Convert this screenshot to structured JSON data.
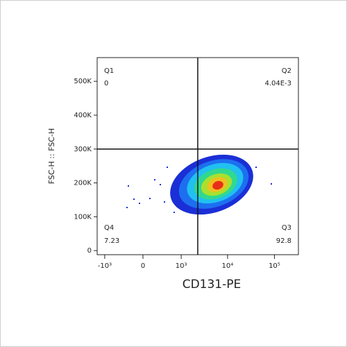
{
  "chart_data": {
    "type": "flow-cytometry-dot-plot",
    "x_label": "CD131-PE",
    "y_label": "FSC-H :: FSC-H",
    "xlim": [
      -1470,
      325000
    ],
    "ylim": [
      -12000,
      570000
    ],
    "xticks": [
      {
        "value": -1000,
        "label": "-10³"
      },
      0,
      {
        "value": 1000,
        "label": "10³"
      },
      {
        "value": 10000,
        "label": "10⁴"
      },
      {
        "value": 100000,
        "label": "10⁵"
      }
    ],
    "yticks": [
      0,
      {
        "value": 100000,
        "label": "100K"
      },
      {
        "value": 200000,
        "label": "200K"
      },
      {
        "value": 300000,
        "label": "300K"
      },
      {
        "value": 400000,
        "label": "400K"
      },
      {
        "value": 500000,
        "label": "500K"
      }
    ],
    "x_gate": 2300,
    "y_gate": 300000,
    "quadrants": [
      {
        "name": "Q1",
        "value": 0,
        "corner": "top-left"
      },
      {
        "name": "Q2",
        "value": 0.00404,
        "value_label": "4.04E-3",
        "corner": "top-right"
      },
      {
        "name": "Q3",
        "value": 92.8,
        "corner": "bottom-right"
      },
      {
        "name": "Q4",
        "value": 7.23,
        "corner": "bottom-left"
      }
    ]
  }
}
